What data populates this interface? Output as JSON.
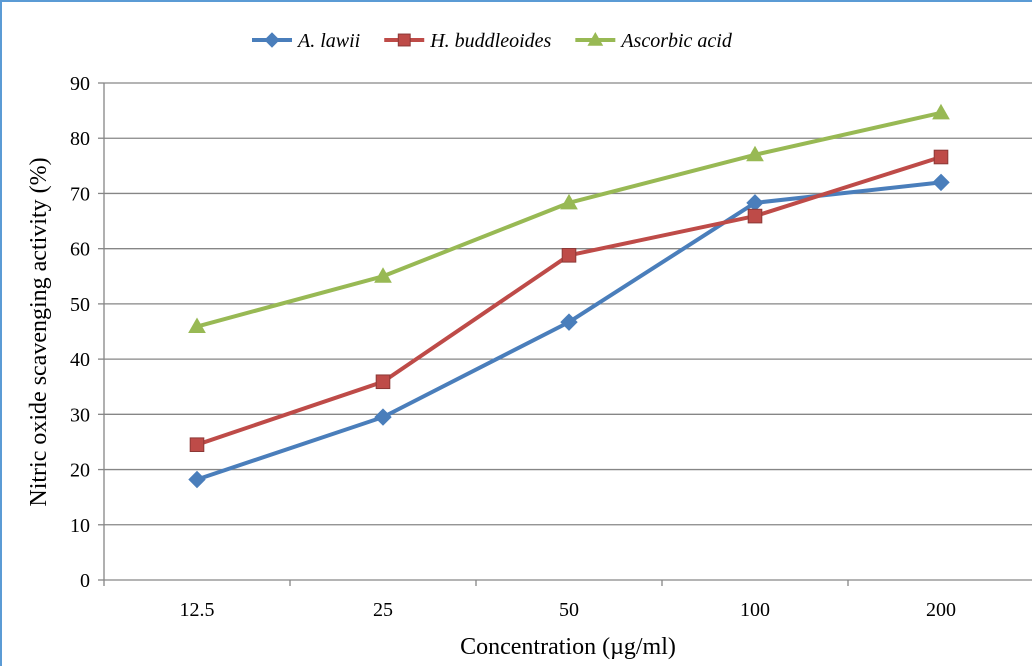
{
  "chart_data": {
    "type": "line",
    "title": "",
    "xlabel": "Concentration (µg/ml)",
    "ylabel": "Nitric  oxide scavenging activity (%)",
    "categories": [
      "12.5",
      "25",
      "50",
      "100",
      "200"
    ],
    "ylim": [
      0,
      90
    ],
    "yticks": [
      0,
      10,
      20,
      30,
      40,
      50,
      60,
      70,
      80,
      90
    ],
    "grid": true,
    "legend_position": "top",
    "series": [
      {
        "name": "A. lawii",
        "color": "#4a7ebb",
        "marker": "diamond",
        "values": [
          18.2,
          29.5,
          46.7,
          68.3,
          72.0
        ]
      },
      {
        "name": "H. buddleoides",
        "color": "#be4b48",
        "marker": "square",
        "values": [
          24.5,
          35.9,
          58.8,
          65.9,
          76.6
        ]
      },
      {
        "name": "Ascorbic acid",
        "color": "#98b954",
        "marker": "triangle",
        "values": [
          45.9,
          55.0,
          68.3,
          77.0,
          84.6
        ]
      }
    ]
  }
}
